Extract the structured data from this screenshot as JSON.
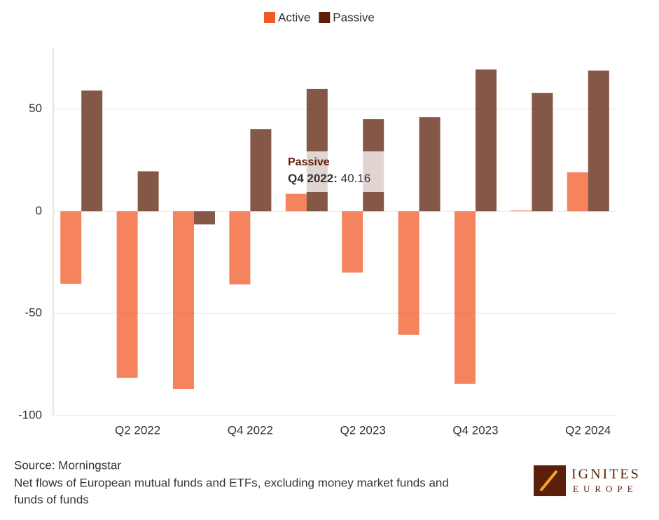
{
  "chart_data": {
    "type": "bar",
    "categories": [
      null,
      "Q2 2022",
      null,
      "Q4 2022",
      null,
      "Q2 2023",
      null,
      "Q4 2023",
      null,
      "Q2 2024"
    ],
    "series": [
      {
        "name": "Active",
        "color": "#f05a28",
        "values": [
          -35.5,
          -81.5,
          -87,
          -35.8,
          8.5,
          -30,
          -60.5,
          -84.5,
          0.3,
          19
        ]
      },
      {
        "name": "Passive",
        "color": "#5c1f0a",
        "values": [
          59,
          19.5,
          -6.5,
          40.16,
          59.8,
          45,
          46,
          69.3,
          57.8,
          68.8
        ]
      }
    ],
    "ylim": [
      -100,
      80
    ],
    "yticks": [
      -100,
      -50,
      0,
      50
    ],
    "grid": true,
    "legend": "top",
    "source": "Source: Morningstar",
    "note": [
      "Net flows of European mutual funds and ETFs, excluding money market funds and",
      "funds of funds"
    ],
    "logo": {
      "top": "IGNITES",
      "bottom": "EUROPE"
    }
  }
}
